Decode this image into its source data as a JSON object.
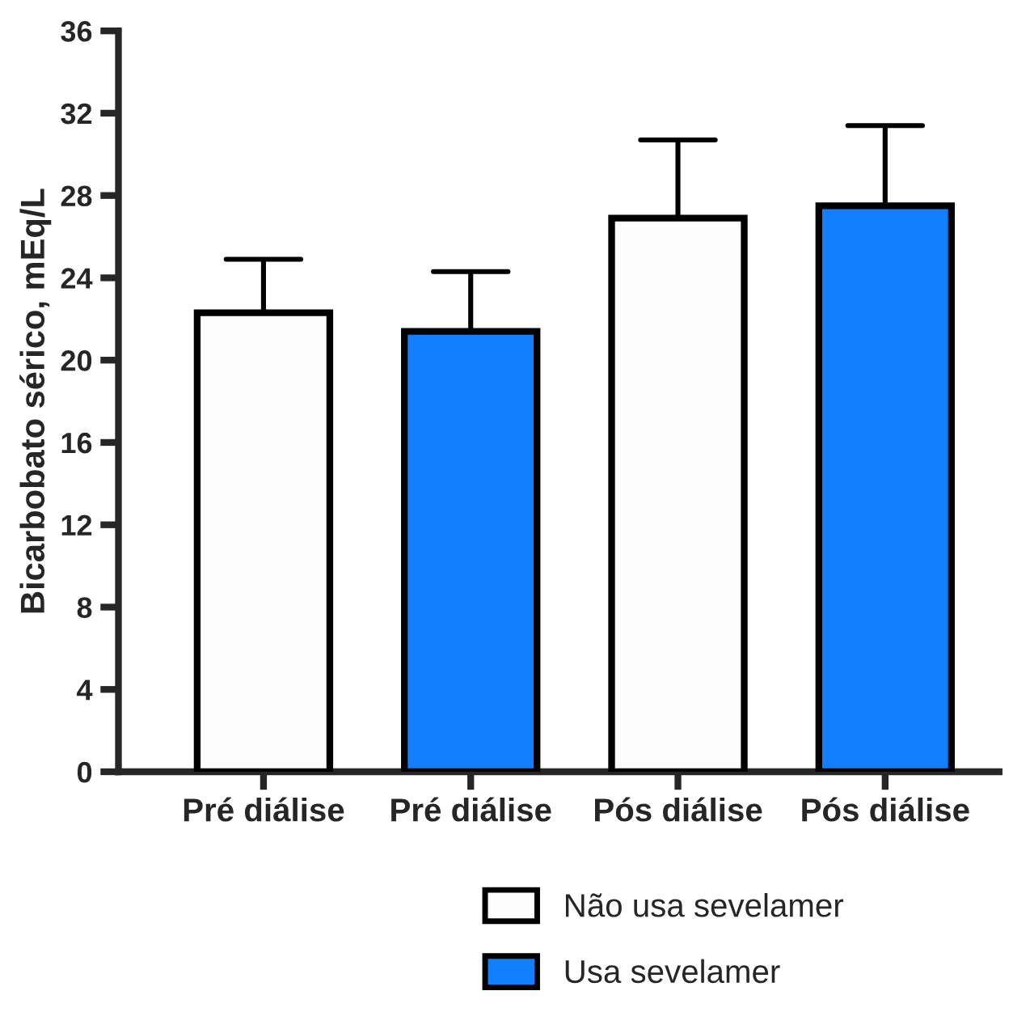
{
  "chart_data": {
    "type": "bar",
    "ylabel": "Bicarbobato sérico, mEq/L",
    "categories": [
      "Pré diálise",
      "Pré diálise",
      "Pós diálise",
      "Pós diálise"
    ],
    "series": [
      {
        "name": "Não usa sevelamer",
        "color": "#fdfdfd",
        "values": [
          22.3,
          null,
          26.9,
          null
        ],
        "errors": [
          [
            22.3,
            24.9
          ],
          null,
          [
            26.9,
            30.7
          ],
          null
        ]
      },
      {
        "name": "Usa sevelamer",
        "color": "#127fff",
        "values": [
          null,
          21.4,
          null,
          27.5
        ],
        "errors": [
          null,
          [
            21.4,
            24.3
          ],
          null,
          [
            27.5,
            31.4
          ]
        ]
      }
    ],
    "ylim": [
      0,
      36
    ],
    "yticks": [
      0,
      4,
      8,
      12,
      16,
      20,
      24,
      28,
      32,
      36
    ],
    "grid": false,
    "legend": "bottom"
  }
}
